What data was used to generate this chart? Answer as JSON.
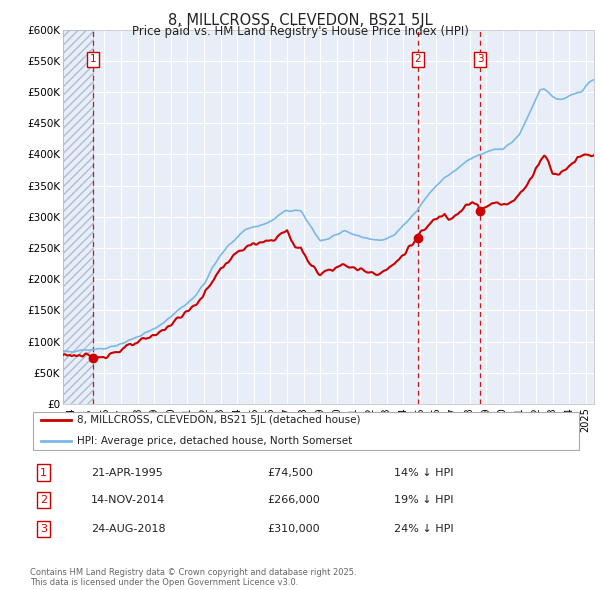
{
  "title": "8, MILLCROSS, CLEVEDON, BS21 5JL",
  "subtitle": "Price paid vs. HM Land Registry's House Price Index (HPI)",
  "ylim": [
    0,
    600000
  ],
  "xlim_start": 1993.5,
  "xlim_end": 2025.5,
  "hpi_color": "#7ab8e8",
  "price_color": "#cc0000",
  "background_color": "#e8eef8",
  "hatch_color": "#c8d4e8",
  "grid_color": "#ffffff",
  "sale_markers": [
    {
      "date": 1995.3,
      "price": 74500,
      "label": "1"
    },
    {
      "date": 2014.88,
      "price": 266000,
      "label": "2"
    },
    {
      "date": 2018.65,
      "price": 310000,
      "label": "3"
    }
  ],
  "legend_house": "8, MILLCROSS, CLEVEDON, BS21 5JL (detached house)",
  "legend_hpi": "HPI: Average price, detached house, North Somerset",
  "table_entries": [
    {
      "num": "1",
      "date": "21-APR-1995",
      "price": "£74,500",
      "info": "14% ↓ HPI"
    },
    {
      "num": "2",
      "date": "14-NOV-2014",
      "price": "£266,000",
      "info": "19% ↓ HPI"
    },
    {
      "num": "3",
      "date": "24-AUG-2018",
      "price": "£310,000",
      "info": "24% ↓ HPI"
    }
  ],
  "footer": "Contains HM Land Registry data © Crown copyright and database right 2025.\nThis data is licensed under the Open Government Licence v3.0."
}
